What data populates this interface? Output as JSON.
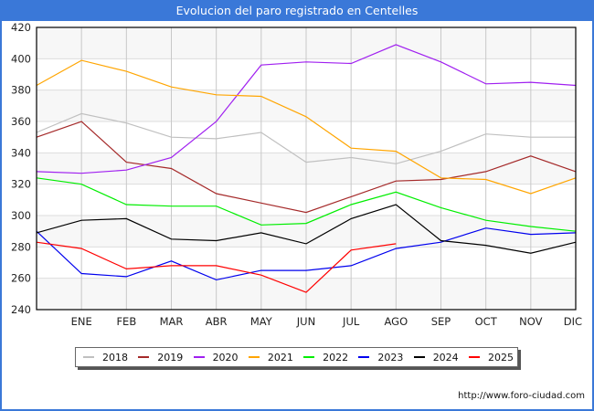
{
  "chart_data": {
    "type": "line",
    "title": "Evolucion del paro registrado en Centelles",
    "xlabel": "",
    "ylabel": "",
    "categories": [
      "",
      "ENE",
      "FEB",
      "MAR",
      "ABR",
      "MAY",
      "JUN",
      "JUL",
      "AGO",
      "SEP",
      "OCT",
      "NOV",
      "DIC"
    ],
    "ylim": [
      240,
      420
    ],
    "yticks": [
      240,
      260,
      280,
      300,
      320,
      340,
      360,
      380,
      400,
      420
    ],
    "grid": true,
    "legend_position": "bottom",
    "series": [
      {
        "name": "2018",
        "color": "#c0c0c0",
        "values": [
          353,
          365,
          359,
          350,
          349,
          353,
          334,
          337,
          333,
          341,
          352,
          350,
          350
        ]
      },
      {
        "name": "2019",
        "color": "#a52a2a",
        "values": [
          350,
          360,
          334,
          330,
          314,
          308,
          302,
          312,
          322,
          323,
          328,
          338,
          328
        ]
      },
      {
        "name": "2020",
        "color": "#a020f0",
        "values": [
          328,
          327,
          329,
          337,
          360,
          396,
          398,
          397,
          409,
          398,
          384,
          385,
          383
        ]
      },
      {
        "name": "2021",
        "color": "#ffa500",
        "values": [
          383,
          399,
          392,
          382,
          377,
          376,
          363,
          343,
          341,
          324,
          323,
          314,
          324
        ]
      },
      {
        "name": "2022",
        "color": "#00ee00",
        "values": [
          324,
          320,
          307,
          306,
          306,
          294,
          295,
          307,
          315,
          305,
          297,
          293,
          290
        ]
      },
      {
        "name": "2023",
        "color": "#0000ee",
        "values": [
          290,
          263,
          261,
          271,
          259,
          265,
          265,
          268,
          279,
          283,
          292,
          288,
          289
        ]
      },
      {
        "name": "2024",
        "color": "#000000",
        "values": [
          289,
          297,
          298,
          285,
          284,
          289,
          282,
          298,
          307,
          284,
          281,
          276,
          283
        ]
      },
      {
        "name": "2025",
        "color": "#ff0000",
        "values": [
          283,
          279,
          266,
          268,
          268,
          262,
          251,
          278,
          282,
          null,
          null,
          null,
          null
        ]
      }
    ]
  },
  "footer": {
    "url": "http://www.foro-ciudad.com"
  }
}
